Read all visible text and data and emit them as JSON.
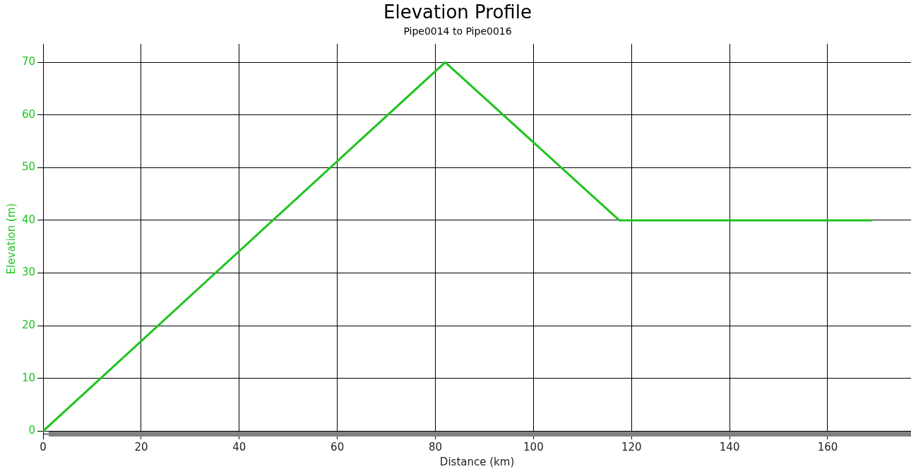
{
  "chart_data": {
    "type": "line",
    "title": "Elevation Profile",
    "subtitle": "Pipe0014 to Pipe0016",
    "xlabel": "Distance (km)",
    "ylabel": "Elevation (m)",
    "x": [
      0,
      82,
      117.5,
      169
    ],
    "series": [
      {
        "color": "#1ec31e",
        "values": [
          0,
          70,
          40,
          40
        ]
      }
    ],
    "xlim": [
      0,
      177
    ],
    "xticks": [
      0,
      20,
      40,
      60,
      80,
      100,
      120,
      140,
      160
    ],
    "ylim": [
      -0.5,
      73.5
    ],
    "yticks": [
      0,
      10,
      20,
      30,
      40,
      50,
      60,
      70
    ],
    "grid": true,
    "legend": false,
    "marker": "none",
    "line_style": "solid"
  }
}
